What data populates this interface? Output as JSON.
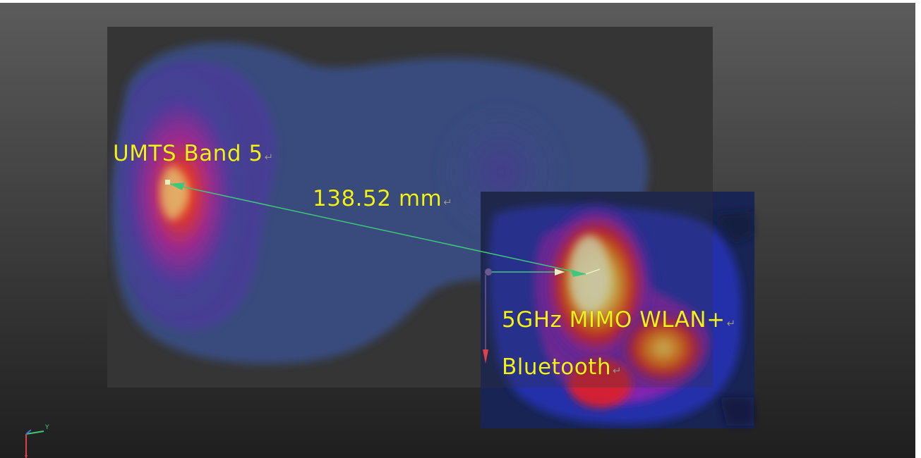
{
  "colors": {
    "background_top": "#5b5b5b",
    "background_bottom": "#1f1f1f",
    "panel": "#353535",
    "field_low": "#3a4f8a",
    "field_mid": "#9b2a8f",
    "field_high": "#e3371f",
    "field_peak": "#f5f08a",
    "label_text": "#f2f21a",
    "measure_line": "#3ec97a"
  },
  "annotations": {
    "antenna_1": "UMTS Band 5",
    "distance": "138.52 mm",
    "antenna_2_line1": "5GHz MIMO WLAN+",
    "antenna_2_line2": "Bluetooth",
    "paragraph_mark": "↵"
  },
  "axes": {
    "y_label": "Y"
  }
}
